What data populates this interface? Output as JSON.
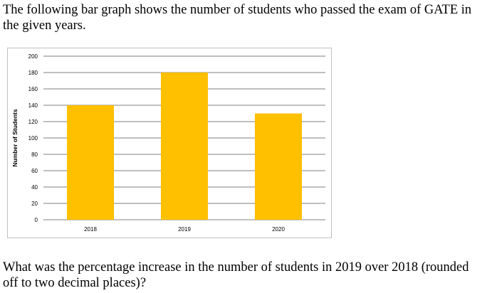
{
  "intro_text": "The following bar graph shows the number of students who passed the exam of GATE in the given years.",
  "question_text": "What was the percentage increase in the number of students in 2019 over 2018 (rounded off to two decimal places)?",
  "chart_data": {
    "type": "bar",
    "categories": [
      "2018",
      "2019",
      "2020"
    ],
    "values": [
      140,
      180,
      130
    ],
    "title": "",
    "xlabel": "",
    "ylabel": "Number of Students",
    "ylim": [
      0,
      200
    ],
    "yticks": [
      0,
      20,
      40,
      60,
      80,
      100,
      120,
      140,
      160,
      180,
      200
    ],
    "grid": true,
    "bar_color": "#FFC000",
    "grid_color": "#7f7f7f"
  }
}
